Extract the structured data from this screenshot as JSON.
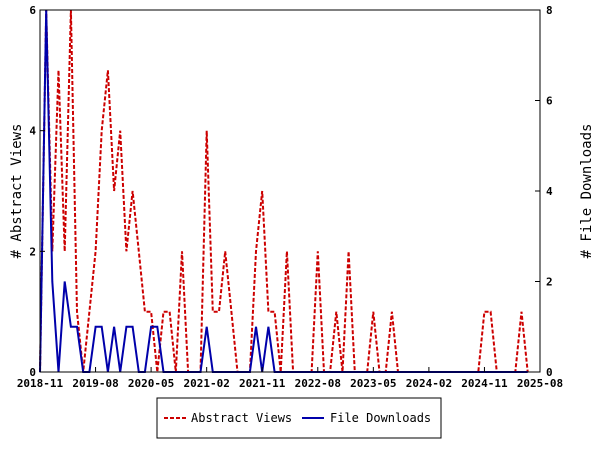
{
  "chart_data": {
    "type": "line",
    "title": "",
    "xlabel": "",
    "ylabel_left": "# Abstract Views",
    "ylabel_right": "# File Downloads",
    "x_tick_labels": [
      "2018-11",
      "2019-08",
      "2020-05",
      "2021-02",
      "2021-11",
      "2022-08",
      "2023-05",
      "2024-02",
      "2024-11",
      "2025-08"
    ],
    "x_range": [
      "2018-11",
      "2025-08"
    ],
    "y_left_range": [
      0,
      6
    ],
    "y_left_ticks": [
      "0",
      "2",
      "4",
      "6"
    ],
    "y_right_range": [
      0,
      8
    ],
    "y_right_ticks": [
      "0",
      "2",
      "4",
      "6",
      "8"
    ],
    "grid": false,
    "legend_position": "bottom",
    "x": [
      "2018-11",
      "2018-12",
      "2019-01",
      "2019-02",
      "2019-03",
      "2019-04",
      "2019-05",
      "2019-06",
      "2019-07",
      "2019-08",
      "2019-09",
      "2019-10",
      "2019-11",
      "2019-12",
      "2020-01",
      "2020-02",
      "2020-03",
      "2020-04",
      "2020-05",
      "2020-06",
      "2020-07",
      "2020-08",
      "2020-09",
      "2020-10",
      "2020-11",
      "2020-12",
      "2021-01",
      "2021-02",
      "2021-03",
      "2021-04",
      "2021-05",
      "2021-06",
      "2021-07",
      "2021-08",
      "2021-09",
      "2021-10",
      "2021-11",
      "2021-12",
      "2022-01",
      "2022-02",
      "2022-03",
      "2022-04",
      "2022-05",
      "2022-06",
      "2022-07",
      "2022-08",
      "2022-09",
      "2022-10",
      "2022-11",
      "2022-12",
      "2023-01",
      "2023-02",
      "2023-03",
      "2023-04",
      "2023-05",
      "2023-06",
      "2023-07",
      "2023-08",
      "2023-09",
      "2023-10",
      "2023-11",
      "2023-12",
      "2024-01",
      "2024-02",
      "2024-03",
      "2024-04",
      "2024-05",
      "2024-06",
      "2024-07",
      "2024-08",
      "2024-09",
      "2024-10",
      "2024-11",
      "2024-12",
      "2025-01",
      "2025-02",
      "2025-03",
      "2025-04",
      "2025-05",
      "2025-06"
    ],
    "series": [
      {
        "name": "Abstract Views",
        "color": "#cc0000",
        "style": "dashed",
        "axis": "left",
        "values": [
          0,
          6,
          2,
          5,
          2,
          6,
          1,
          0,
          1,
          2,
          4,
          5,
          3,
          4,
          2,
          3,
          2,
          1,
          1,
          0,
          1,
          1,
          0,
          2,
          0,
          0,
          0,
          4,
          1,
          1,
          2,
          1,
          0,
          0,
          0,
          2,
          3,
          1,
          1,
          0,
          2,
          0,
          0,
          0,
          0,
          2,
          0,
          0,
          1,
          0,
          2,
          0,
          0,
          0,
          1,
          0,
          0,
          1,
          0,
          0,
          0,
          0,
          0,
          0,
          0,
          0,
          0,
          0,
          0,
          0,
          0,
          0,
          1,
          1,
          0,
          0,
          0,
          0,
          1,
          0
        ]
      },
      {
        "name": "File Downloads",
        "color": "#0000aa",
        "style": "solid",
        "axis": "right",
        "values": [
          0,
          8,
          2,
          0,
          2,
          1,
          1,
          0,
          0,
          1,
          1,
          0,
          1,
          0,
          1,
          1,
          0,
          0,
          1,
          1,
          0,
          0,
          0,
          0,
          0,
          0,
          0,
          1,
          0,
          0,
          0,
          0,
          0,
          0,
          0,
          1,
          0,
          1,
          0,
          0,
          0,
          0,
          0,
          0,
          0,
          0,
          0,
          0,
          0,
          0,
          0,
          0,
          0,
          0,
          0,
          0,
          0,
          0,
          0,
          0,
          0,
          0,
          0,
          0,
          0,
          0,
          0,
          0,
          0,
          0,
          0,
          0,
          0,
          0,
          0,
          0,
          0,
          0,
          0,
          0
        ]
      }
    ]
  }
}
